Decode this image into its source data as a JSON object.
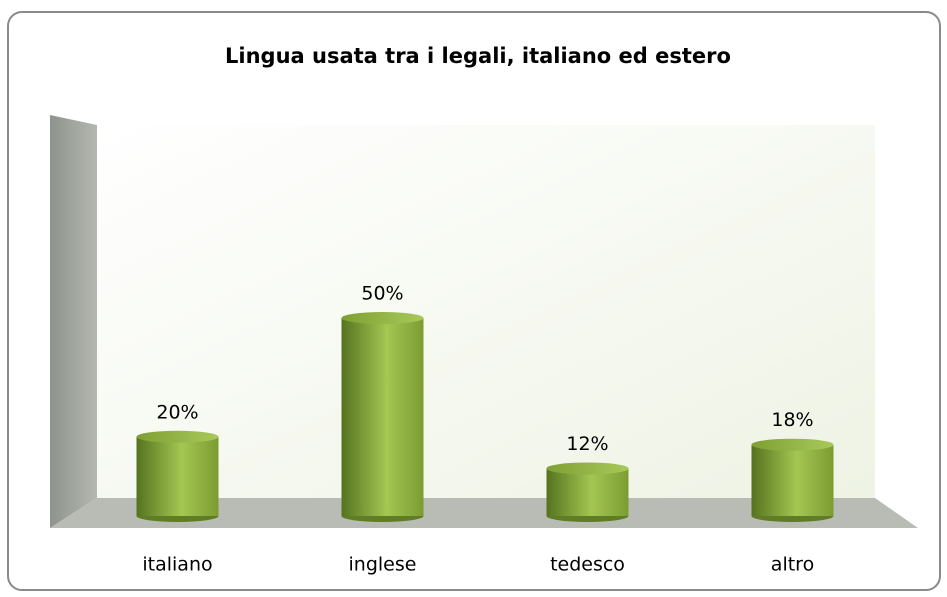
{
  "chart_data": {
    "type": "bar",
    "title": "Lingua usata tra i legali, italiano ed estero",
    "categories": [
      "italiano",
      "inglese",
      "tedesco",
      "altro"
    ],
    "values": [
      20,
      50,
      12,
      18
    ],
    "value_labels": [
      "20%",
      "50%",
      "12%",
      "18%"
    ],
    "color": "#8fb03e",
    "ylim": [
      0,
      60
    ]
  }
}
